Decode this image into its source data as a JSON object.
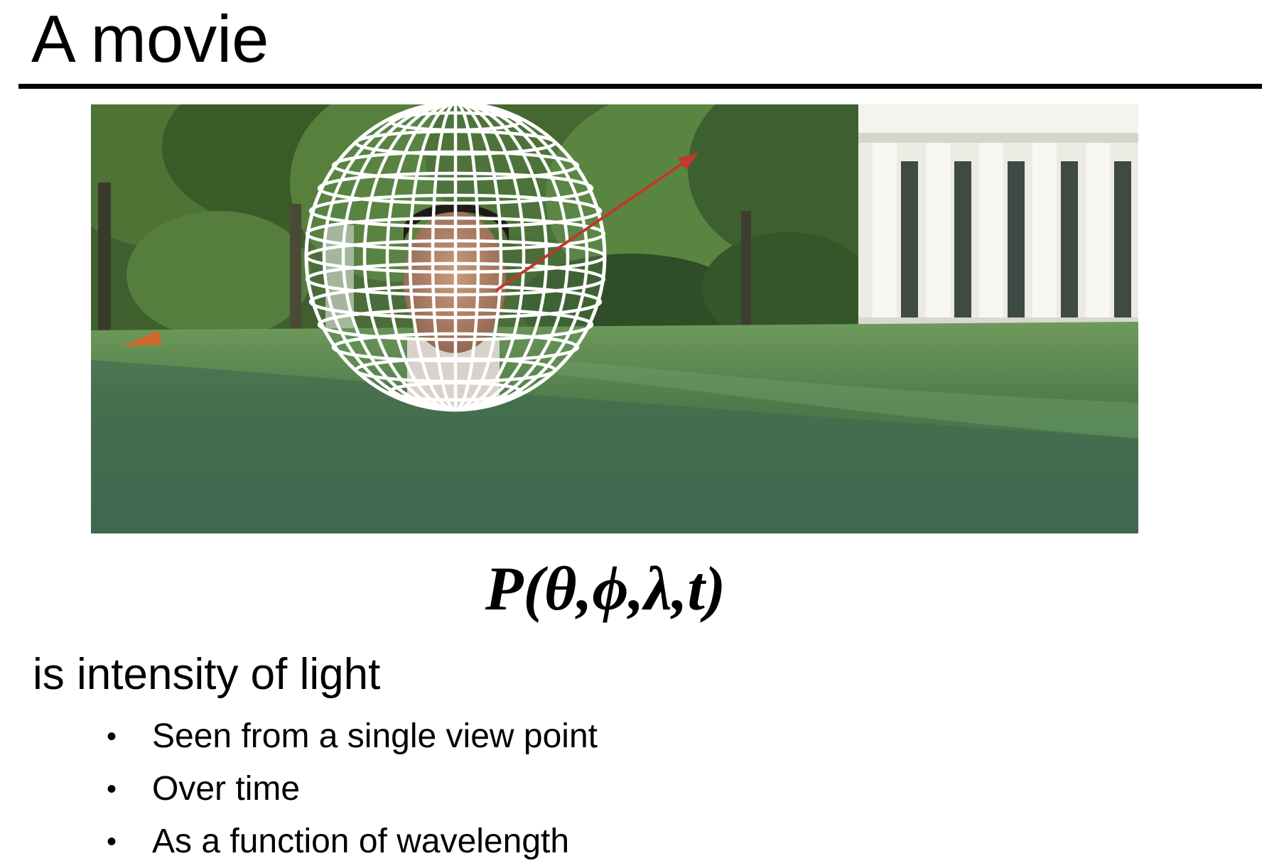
{
  "slide": {
    "title": "A movie",
    "formula": "P(θ,ϕ,λ,t)",
    "subtitle": "is intensity of light",
    "bullets": [
      "Seen from a single view point",
      "Over time",
      "As a function of wavelength"
    ]
  },
  "image": {
    "description_icon": "plenoptic-sphere-photo",
    "colors": {
      "grass": "#4f7c4a",
      "trees": "#3d5e2b",
      "sky": "#dfe8e6",
      "building": "#e8e8e2",
      "sphere_grid": "#ffffff",
      "ray": "#c0392b"
    }
  }
}
